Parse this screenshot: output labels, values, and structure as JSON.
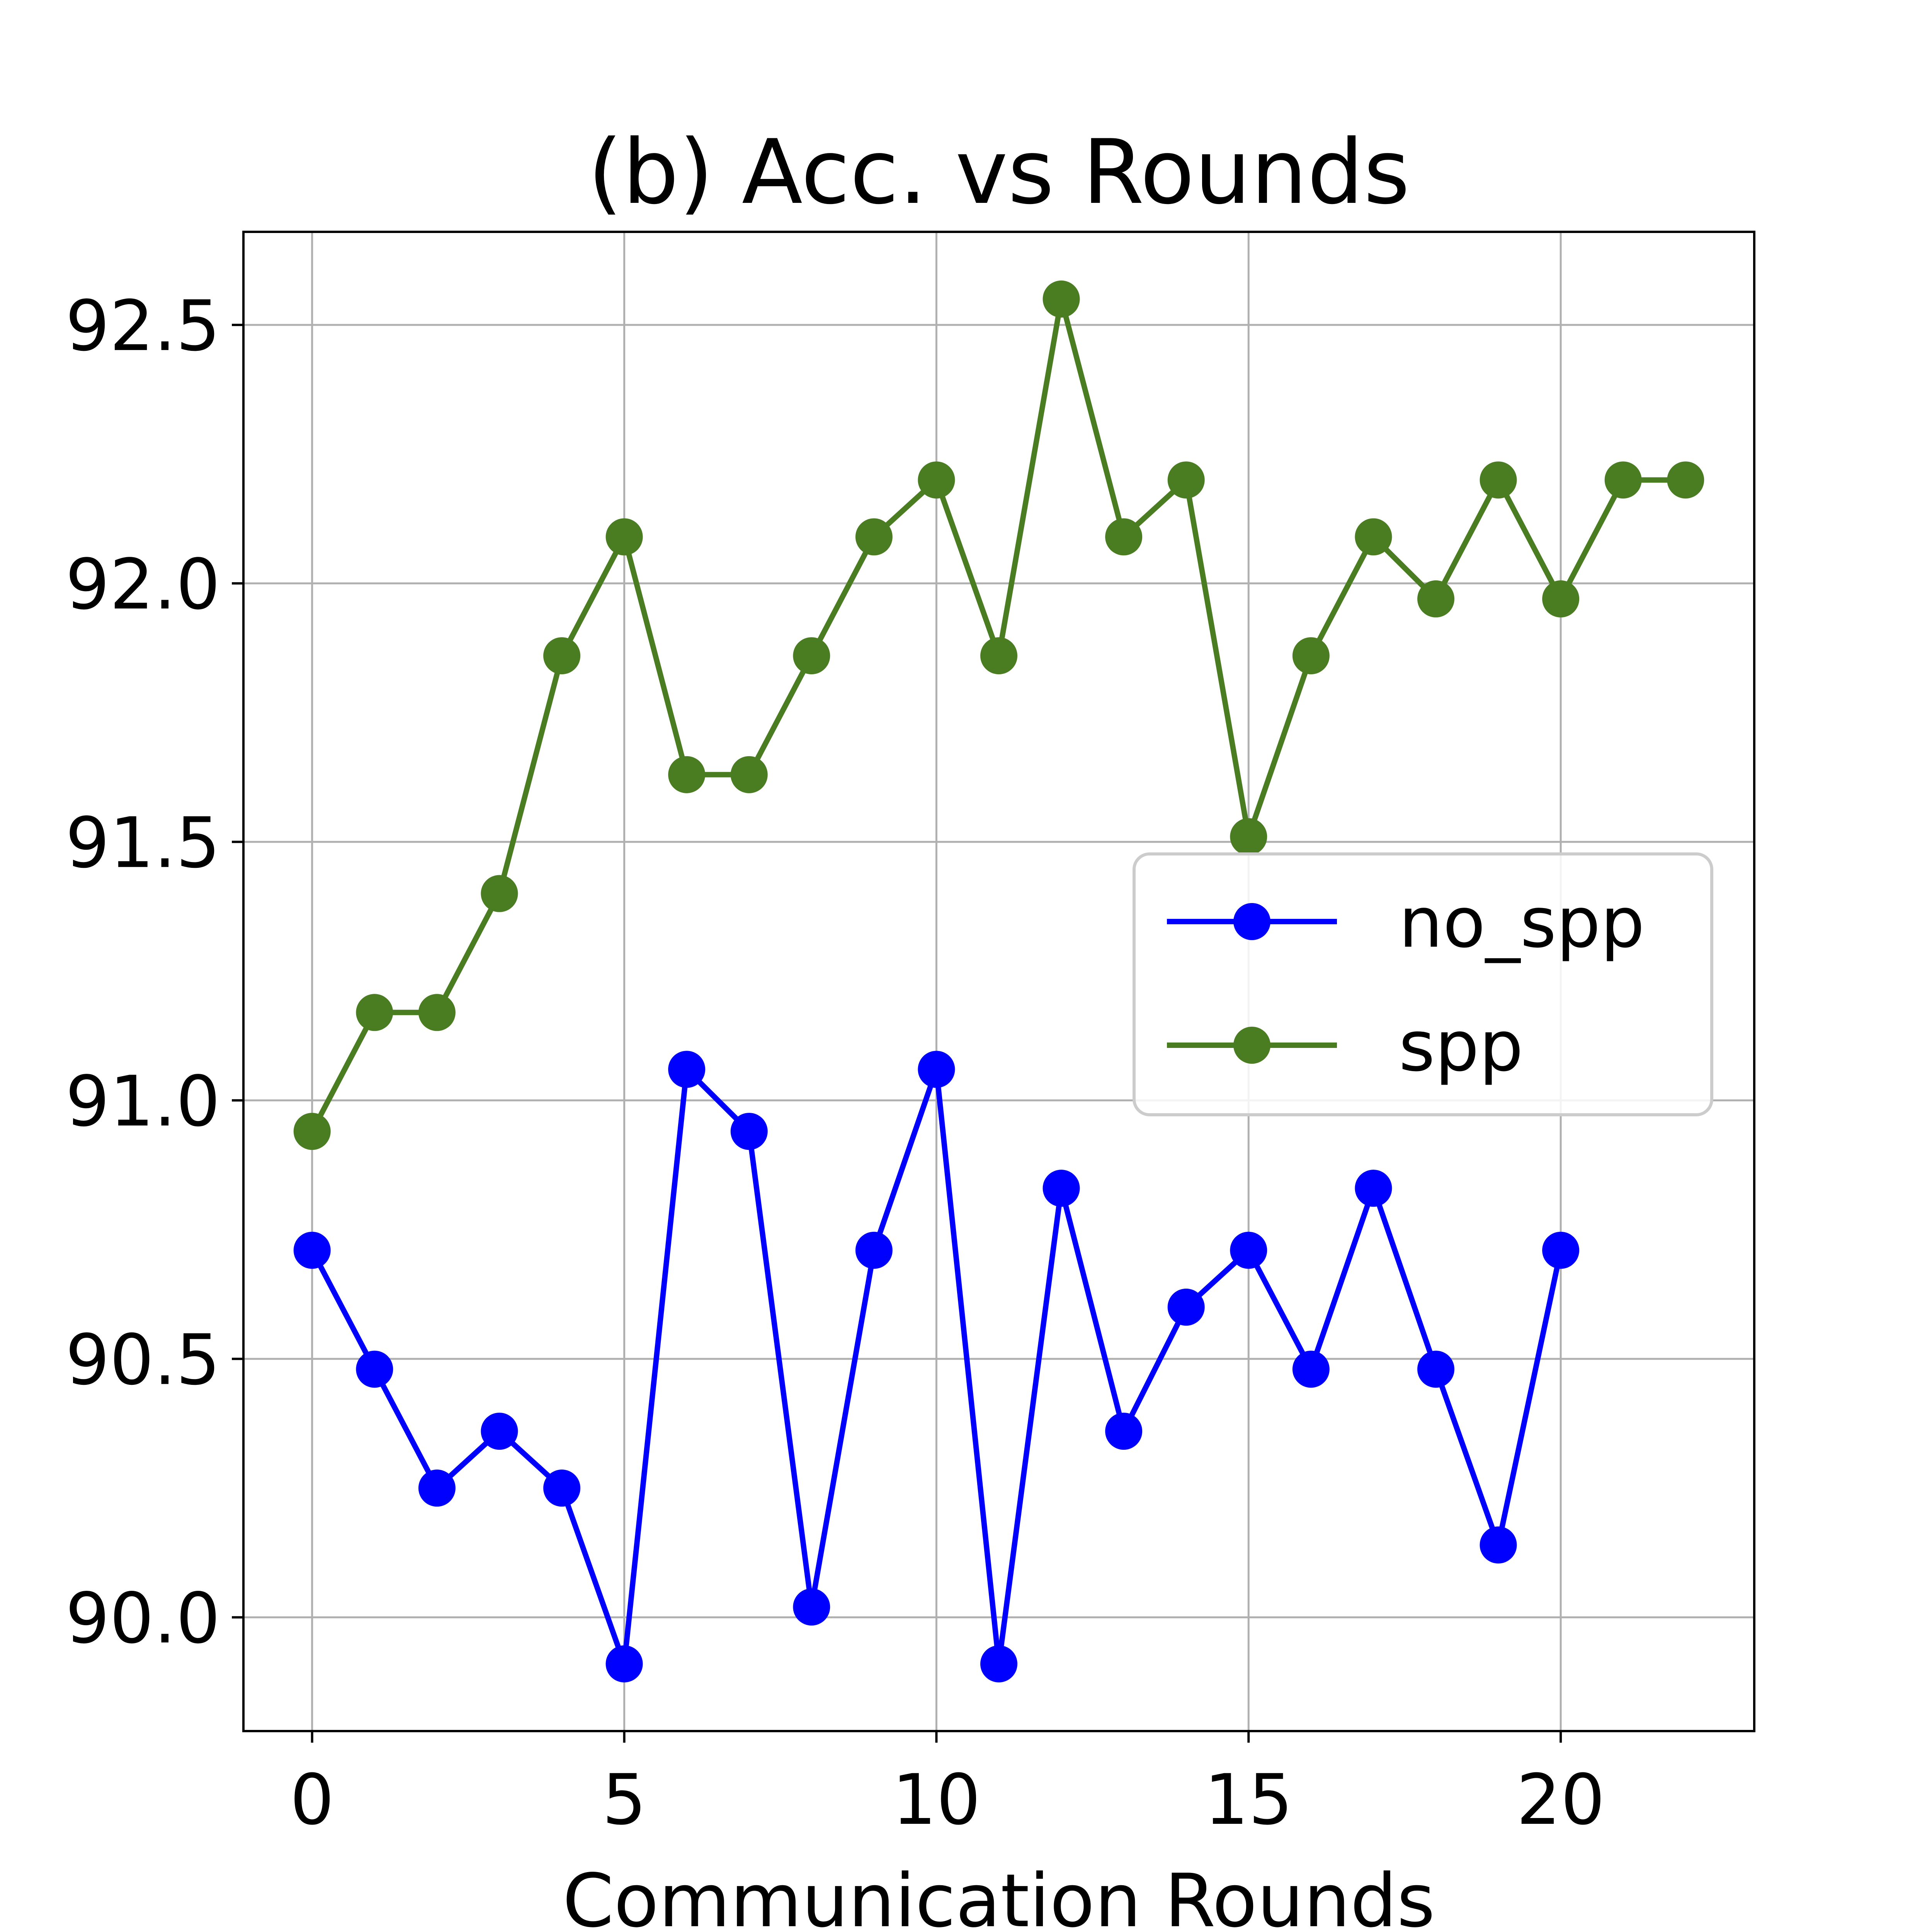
{
  "chart_data": {
    "type": "line",
    "title": "(b) Acc. vs Rounds",
    "xlabel": "Communication Rounds",
    "ylabel": "",
    "xlim": [
      -1.1,
      23.1
    ],
    "ylim": [
      89.78,
      92.68
    ],
    "xticks": [
      0,
      5,
      10,
      15,
      20
    ],
    "yticks": [
      90.0,
      90.5,
      91.0,
      91.5,
      92.0,
      92.5
    ],
    "ytick_labels": [
      "90.0",
      "90.5",
      "91.0",
      "91.5",
      "92.0",
      "92.5"
    ],
    "grid": true,
    "legend_position": "center-right",
    "series": [
      {
        "name": "no_spp",
        "color": "#0000ff",
        "x": [
          0,
          1,
          2,
          3,
          4,
          5,
          6,
          7,
          8,
          9,
          10,
          11,
          12,
          13,
          14,
          15,
          16,
          17,
          18,
          19,
          20
        ],
        "y": [
          90.71,
          90.48,
          90.25,
          90.36,
          90.25,
          89.91,
          91.06,
          90.94,
          90.02,
          90.71,
          91.06,
          89.91,
          90.83,
          90.36,
          90.6,
          90.71,
          90.48,
          90.83,
          90.48,
          90.14,
          90.71
        ]
      },
      {
        "name": "spp",
        "color": "#4a7c22",
        "x": [
          0,
          1,
          2,
          3,
          4,
          5,
          6,
          7,
          8,
          9,
          10,
          11,
          12,
          13,
          14,
          15,
          16,
          17,
          18,
          19,
          20,
          21,
          22
        ],
        "y": [
          90.94,
          91.17,
          91.17,
          91.4,
          91.86,
          92.09,
          91.63,
          91.63,
          91.86,
          92.09,
          92.2,
          91.86,
          92.55,
          92.09,
          92.2,
          91.51,
          91.86,
          92.09,
          91.97,
          92.2,
          91.97,
          92.2,
          92.2
        ]
      }
    ]
  }
}
